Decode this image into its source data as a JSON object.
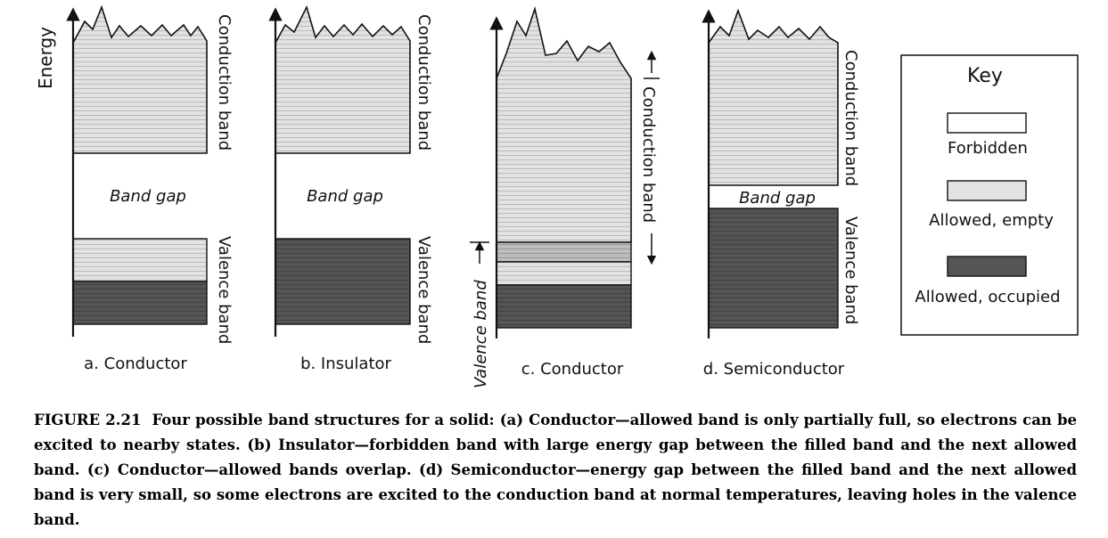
{
  "axis": {
    "energy_label": "Energy"
  },
  "panels": {
    "a": {
      "caption": "a. Conductor",
      "upper_band": "Conduction band",
      "lower_band": "Valence band",
      "gap": "Band gap"
    },
    "b": {
      "caption": "b. Insulator",
      "upper_band": "Conduction band",
      "lower_band": "Valence band",
      "gap": "Band gap"
    },
    "c": {
      "caption": "c. Conductor",
      "upper_band": "Conduction band",
      "lower_band": "Valence band"
    },
    "d": {
      "caption": "d. Semiconductor",
      "upper_band": "Conduction band",
      "lower_band": "Valence band",
      "gap": "Band gap"
    }
  },
  "key": {
    "title": "Key",
    "items": [
      {
        "label": "Forbidden",
        "color": "#ffffff"
      },
      {
        "label": "Allowed, empty",
        "color": "#e2e2e2"
      },
      {
        "label": "Allowed, occupied",
        "color": "#555555"
      }
    ]
  },
  "colors": {
    "allowed_empty": "#e2e2e2",
    "allowed_occupied": "#555555",
    "overlap": "#bdbdbd",
    "line": "#111111"
  },
  "caption": {
    "label": "FIGURE 2.21",
    "text": "Four possible band structures for a solid: (a) Conductor—allowed band is only partially full, so electrons can be excited to nearby states. (b) Insulator—forbidden band with large energy gap between the filled band and the next allowed band. (c) Conductor—allowed bands overlap. (d) Semiconductor—energy gap between the filled band and the next allowed band is very small, so some electrons are excited to the conduction band at normal temperatures, leaving holes in the valence band."
  }
}
